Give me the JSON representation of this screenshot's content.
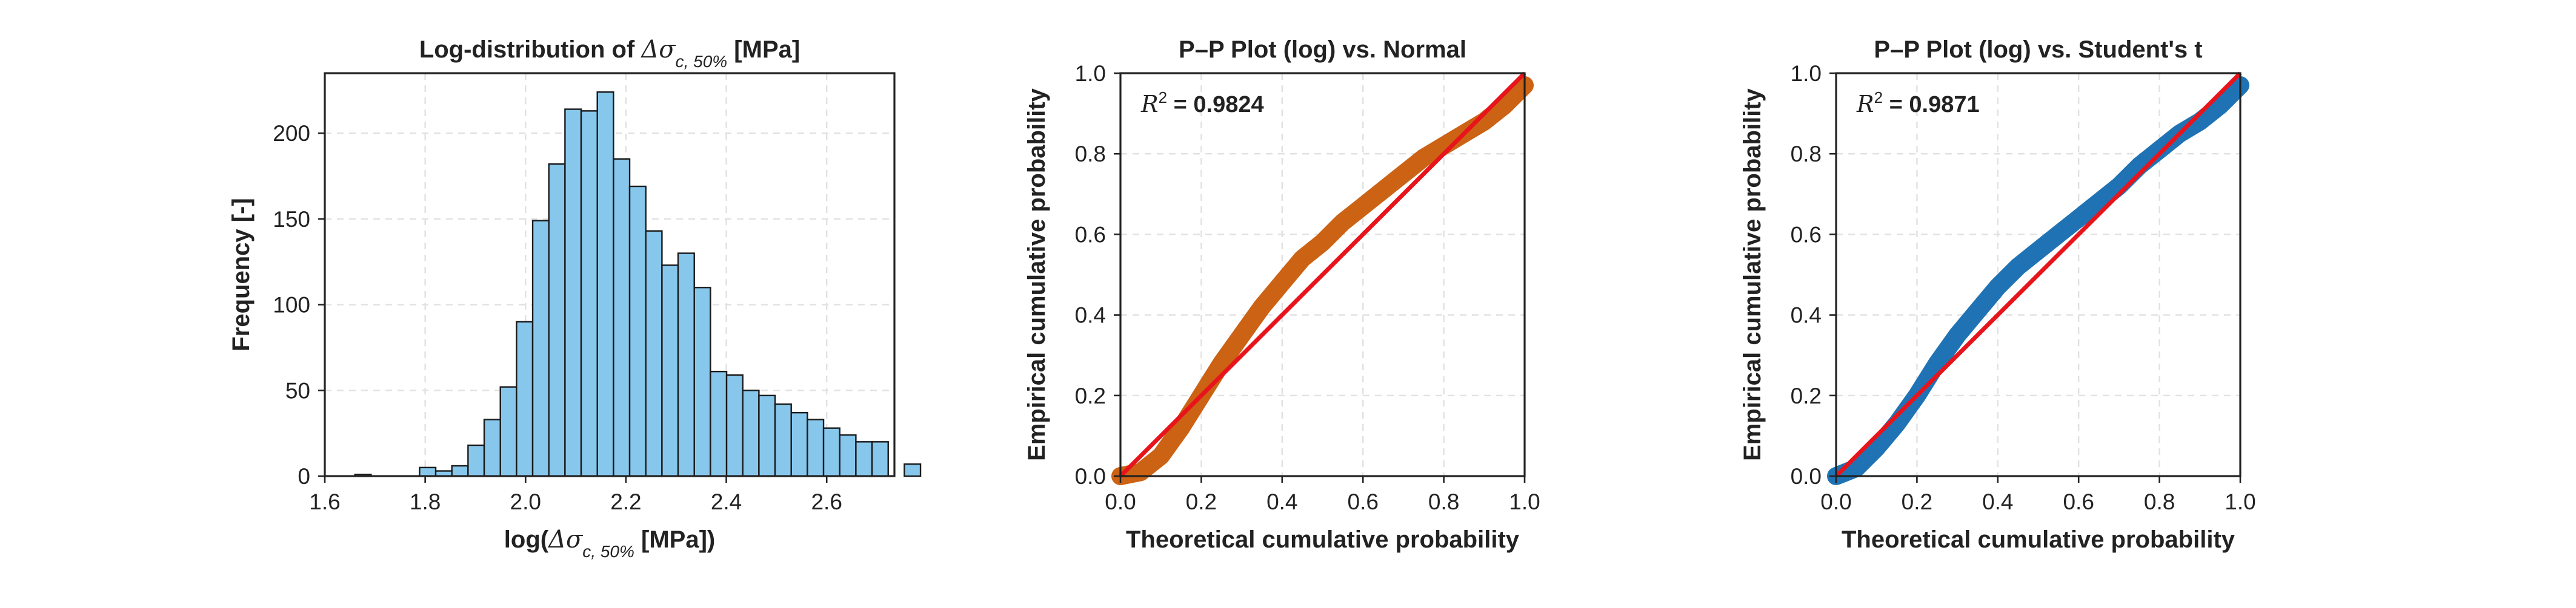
{
  "chart_data": [
    {
      "type": "bar",
      "title_prefix": "Log-distribution of ",
      "title_symbol": "Δσ",
      "title_subscript": "c, 50%",
      "title_suffix": " [MPa]",
      "xlabel_prefix": "log(",
      "xlabel_symbol": "Δσ",
      "xlabel_subscript": "c, 50%",
      "xlabel_suffix": " [MPa])",
      "ylabel": "Frequency [-]",
      "bar_color": "#87c7ec",
      "bin_start": 1.66,
      "bin_width": 0.0322,
      "values": [
        1,
        0,
        0,
        0,
        5,
        3,
        6,
        18,
        33,
        52,
        90,
        149,
        182,
        214,
        213,
        224,
        185,
        169,
        143,
        123,
        130,
        110,
        61,
        59,
        50,
        47,
        42,
        37,
        33,
        28,
        24,
        20,
        20,
        0,
        7
      ],
      "xlim": [
        1.6,
        2.735
      ],
      "ylim": [
        0,
        235
      ],
      "xticks": [
        1.6,
        1.8,
        2.0,
        2.2,
        2.4,
        2.6
      ],
      "yticks": [
        0,
        50,
        100,
        150,
        200
      ]
    },
    {
      "type": "scatter",
      "title": "P–P Plot (log) vs. Normal",
      "xlabel": "Theoretical cumulative probability",
      "ylabel": "Empirical cumulative probability",
      "r2_label": "R",
      "r2_sup": "2",
      "r2_value": "= 0.9824",
      "color": "#cc6214",
      "xlim": [
        0,
        1
      ],
      "ylim": [
        0,
        1
      ],
      "xticks": [
        0.0,
        0.2,
        0.4,
        0.6,
        0.8,
        1.0
      ],
      "yticks": [
        0.0,
        0.2,
        0.4,
        0.6,
        0.8,
        1.0
      ],
      "x": [
        0.0,
        0.05,
        0.1,
        0.15,
        0.2,
        0.25,
        0.3,
        0.35,
        0.4,
        0.45,
        0.5,
        0.55,
        0.6,
        0.65,
        0.7,
        0.75,
        0.8,
        0.85,
        0.9,
        0.95,
        1.0
      ],
      "y": [
        0.0,
        0.01,
        0.05,
        0.12,
        0.2,
        0.28,
        0.35,
        0.42,
        0.48,
        0.54,
        0.58,
        0.63,
        0.67,
        0.71,
        0.75,
        0.79,
        0.82,
        0.85,
        0.88,
        0.92,
        0.97
      ],
      "reference_line": [
        [
          0,
          0
        ],
        [
          1,
          1
        ]
      ]
    },
    {
      "type": "scatter",
      "title": "P–P Plot (log) vs. Student's t",
      "xlabel": "Theoretical cumulative probability",
      "ylabel": "Empirical cumulative probability",
      "r2_label": "R",
      "r2_sup": "2",
      "r2_value": "= 0.9871",
      "color": "#1f73b4",
      "xlim": [
        0,
        1
      ],
      "ylim": [
        0,
        1
      ],
      "xticks": [
        0.0,
        0.2,
        0.4,
        0.6,
        0.8,
        1.0
      ],
      "yticks": [
        0.0,
        0.2,
        0.4,
        0.6,
        0.8,
        1.0
      ],
      "x": [
        0.0,
        0.05,
        0.1,
        0.15,
        0.2,
        0.25,
        0.3,
        0.35,
        0.4,
        0.45,
        0.5,
        0.55,
        0.6,
        0.65,
        0.7,
        0.75,
        0.8,
        0.85,
        0.9,
        0.95,
        1.0
      ],
      "y": [
        0.0,
        0.02,
        0.07,
        0.13,
        0.2,
        0.28,
        0.35,
        0.41,
        0.47,
        0.52,
        0.56,
        0.6,
        0.64,
        0.68,
        0.72,
        0.77,
        0.81,
        0.85,
        0.88,
        0.92,
        0.97
      ],
      "reference_line": [
        [
          0,
          0
        ],
        [
          1,
          1
        ]
      ]
    }
  ]
}
